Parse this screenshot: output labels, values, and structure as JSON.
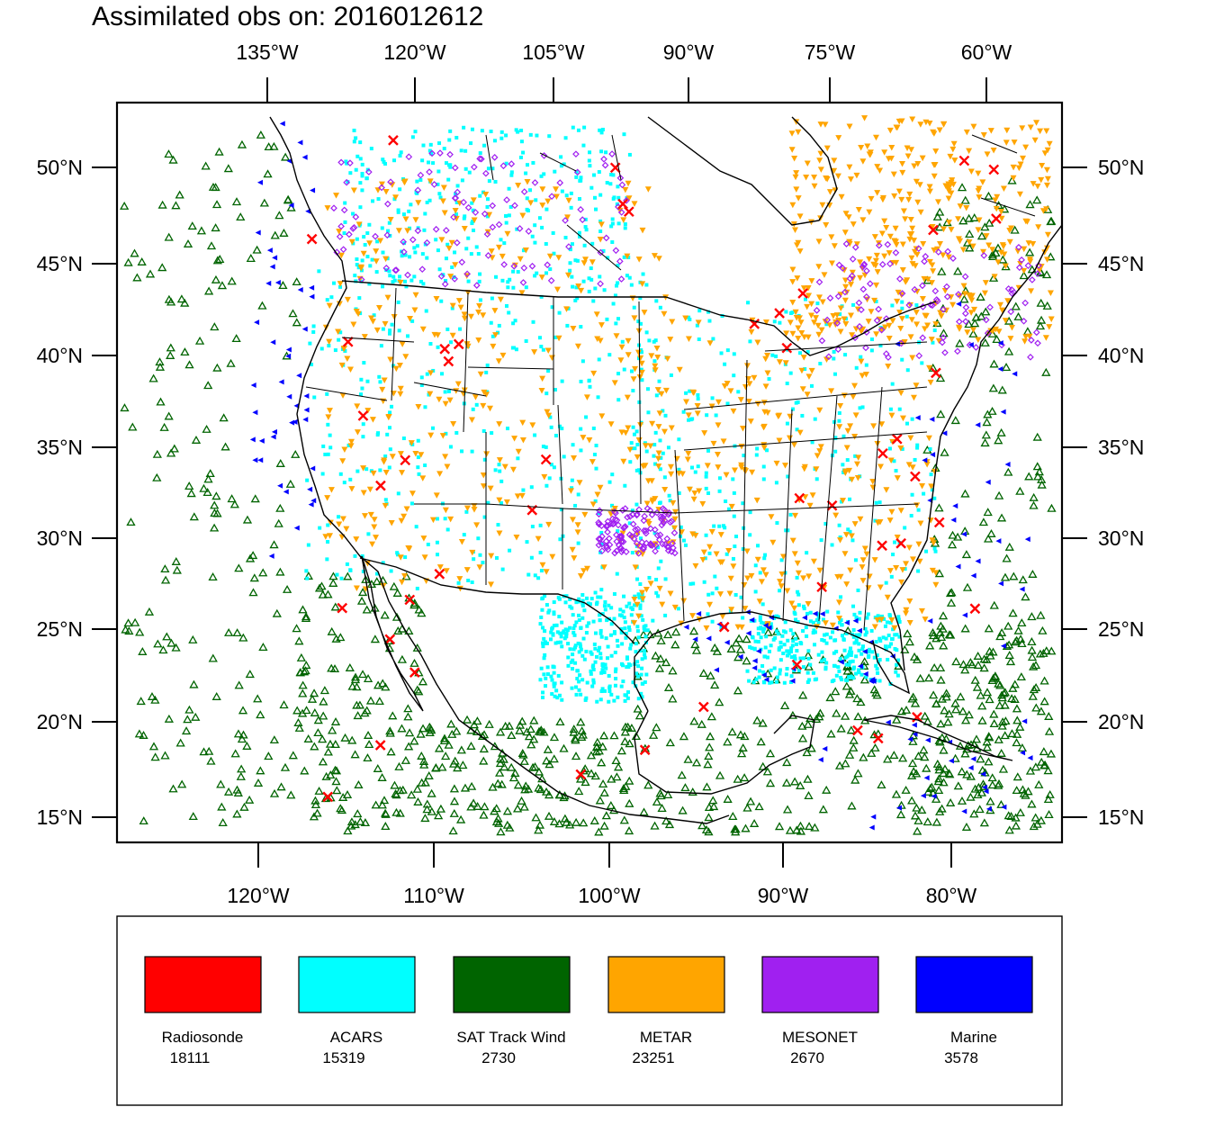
{
  "title": "Assimilated obs on: 2016012612",
  "top_lon_labels": [
    "135°W",
    "120°W",
    "105°W",
    "90°W",
    "75°W",
    "60°W"
  ],
  "bottom_lon_labels": [
    "120°W",
    "110°W",
    "100°W",
    "90°W",
    "80°W"
  ],
  "lat_labels": [
    "50°N",
    "45°N",
    "40°N",
    "35°N",
    "30°N",
    "25°N",
    "20°N",
    "15°N"
  ],
  "legend": [
    {
      "name": "Radiosonde",
      "count": "18111",
      "color": "#ff0000"
    },
    {
      "name": "ACARS",
      "count": "15319",
      "color": "#00ffff"
    },
    {
      "name": "SAT Track Wind",
      "count": "2730",
      "color": "#006400"
    },
    {
      "name": "METAR",
      "count": "23251",
      "color": "#ffa500"
    },
    {
      "name": "MESONET",
      "count": "2670",
      "color": "#a020f0"
    },
    {
      "name": "Marine",
      "count": "3578",
      "color": "#0000ff"
    }
  ]
}
